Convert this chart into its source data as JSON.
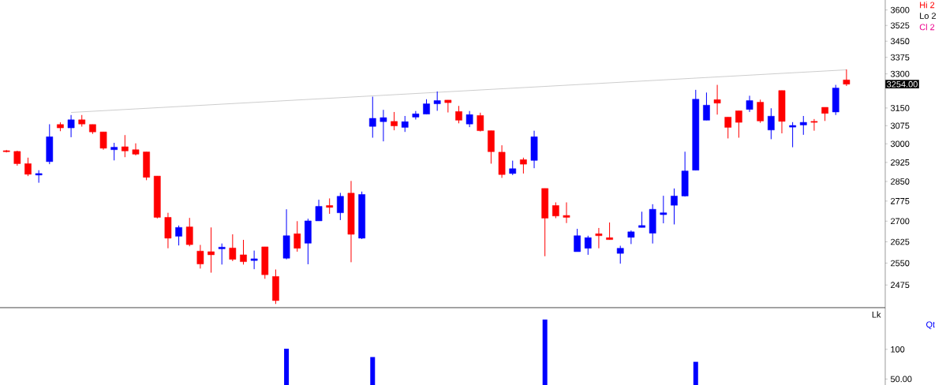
{
  "chart_data": [
    {
      "type": "candlestick",
      "categories": [
        null,
        null,
        null,
        null,
        null,
        null,
        null,
        null,
        null,
        null,
        null,
        null,
        null,
        null,
        null,
        null,
        null,
        null,
        null,
        null,
        null,
        null,
        null,
        null,
        null,
        null,
        null,
        null,
        null,
        null,
        null,
        null,
        null,
        null,
        null,
        null,
        null,
        null,
        null,
        null,
        null,
        null,
        null,
        null,
        null,
        null,
        null,
        null,
        null,
        null,
        null,
        null,
        null,
        null,
        null,
        null,
        null,
        null,
        null,
        null,
        null,
        null,
        null,
        null,
        null,
        null,
        null,
        null,
        null,
        null,
        null,
        null,
        null,
        null,
        null,
        null,
        null,
        null,
        null
      ],
      "ohlc": [
        [
          2972,
          2975,
          2965,
          2968
        ],
        [
          2969,
          2972,
          2912,
          2920
        ],
        [
          2920,
          2944,
          2871,
          2878
        ],
        [
          2875,
          2894,
          2845,
          2881
        ],
        [
          2928,
          3081,
          2918,
          3029
        ],
        [
          3080,
          3089,
          3052,
          3066
        ],
        [
          3066,
          3120,
          3027,
          3100
        ],
        [
          3100,
          3120,
          3071,
          3082
        ],
        [
          3080,
          3080,
          3041,
          3049
        ],
        [
          3049,
          3049,
          2976,
          2982
        ],
        [
          2976,
          3004,
          2933,
          2986
        ],
        [
          2988,
          3036,
          2946,
          2971
        ],
        [
          2976,
          3002,
          2953,
          2958
        ],
        [
          2967,
          2967,
          2855,
          2866
        ],
        [
          2871,
          2871,
          2710,
          2714
        ],
        [
          2714,
          2731,
          2602,
          2638
        ],
        [
          2645,
          2684,
          2612,
          2677
        ],
        [
          2679,
          2712,
          2609,
          2615
        ],
        [
          2592,
          2614,
          2531,
          2547
        ],
        [
          2590,
          2677,
          2517,
          2579
        ],
        [
          2600,
          2619,
          2545,
          2606
        ],
        [
          2603,
          2652,
          2557,
          2563
        ],
        [
          2579,
          2632,
          2545,
          2555
        ],
        [
          2559,
          2594,
          2529,
          2565
        ],
        [
          2607,
          2607,
          2496,
          2510
        ],
        [
          2504,
          2528,
          2412,
          2423
        ],
        [
          2567,
          2744,
          2563,
          2647
        ],
        [
          2654,
          2700,
          2590,
          2602
        ],
        [
          2620,
          2709,
          2546,
          2701
        ],
        [
          2701,
          2780,
          2701,
          2755
        ],
        [
          2758,
          2785,
          2727,
          2751
        ],
        [
          2731,
          2806,
          2704,
          2793
        ],
        [
          2805,
          2852,
          2553,
          2652
        ],
        [
          2638,
          2811,
          2635,
          2800
        ],
        [
          3072,
          3199,
          3025,
          3106
        ],
        [
          3092,
          3142,
          3010,
          3109
        ],
        [
          3093,
          3133,
          3056,
          3074
        ],
        [
          3068,
          3116,
          3049,
          3092
        ],
        [
          3111,
          3137,
          3101,
          3125
        ],
        [
          3124,
          3188,
          3124,
          3168
        ],
        [
          3168,
          3222,
          3138,
          3182
        ],
        [
          3184,
          3184,
          3131,
          3173
        ],
        [
          3135,
          3159,
          3085,
          3098
        ],
        [
          3082,
          3137,
          3069,
          3122
        ],
        [
          3118,
          3130,
          3051,
          3054
        ],
        [
          3054,
          3054,
          2920,
          2968
        ],
        [
          2966,
          2994,
          2864,
          2877
        ],
        [
          2881,
          2932,
          2875,
          2900
        ],
        [
          2936,
          2944,
          2881,
          2918
        ],
        [
          2933,
          3054,
          2902,
          3029
        ],
        [
          2823,
          2823,
          2574,
          2711
        ],
        [
          2758,
          2770,
          2711,
          2719
        ],
        [
          2721,
          2770,
          2693,
          2714
        ],
        [
          2590,
          2672,
          2590,
          2647
        ],
        [
          2602,
          2647,
          2579,
          2640
        ],
        [
          2654,
          2675,
          2602,
          2647
        ],
        [
          2640,
          2695,
          2633,
          2633
        ],
        [
          2584,
          2611,
          2548,
          2602
        ],
        [
          2641,
          2666,
          2617,
          2661
        ],
        [
          2677,
          2735,
          2677,
          2684
        ],
        [
          2656,
          2763,
          2619,
          2744
        ],
        [
          2724,
          2795,
          2692,
          2731
        ],
        [
          2759,
          2823,
          2688,
          2794
        ],
        [
          2794,
          2968,
          2792,
          2891
        ],
        [
          2894,
          3229,
          2894,
          3188
        ],
        [
          3098,
          3217,
          3098,
          3162
        ],
        [
          3186,
          3251,
          3122,
          3171
        ],
        [
          3111,
          3111,
          3022,
          3068
        ],
        [
          3138,
          3138,
          3025,
          3089
        ],
        [
          3144,
          3203,
          3133,
          3182
        ],
        [
          3175,
          3186,
          3087,
          3095
        ],
        [
          3057,
          3149,
          3019,
          3115
        ],
        [
          3226,
          3226,
          3043,
          3093
        ],
        [
          3069,
          3090,
          2986,
          3076
        ],
        [
          3078,
          3116,
          3037,
          3089
        ],
        [
          3093,
          3103,
          3054,
          3089
        ],
        [
          3153,
          3153,
          3095,
          3127
        ],
        [
          3133,
          3251,
          3120,
          3237
        ],
        [
          3273,
          3320,
          3246,
          3254
        ]
      ],
      "series": [
        {
          "type": "line",
          "color": "#c0c0c0",
          "values": [
            null,
            null,
            null,
            null,
            null,
            null,
            3131,
            null,
            null,
            null,
            null,
            null,
            null,
            null,
            null,
            null,
            null,
            null,
            null,
            null,
            null,
            null,
            null,
            null,
            null,
            null,
            null,
            null,
            null,
            null,
            null,
            null,
            null,
            null,
            null,
            null,
            null,
            null,
            null,
            null,
            null,
            null,
            null,
            null,
            null,
            null,
            null,
            null,
            null,
            null,
            null,
            null,
            null,
            null,
            null,
            null,
            null,
            null,
            null,
            null,
            null,
            null,
            null,
            null,
            null,
            null,
            null,
            null,
            null,
            null,
            null,
            null,
            null,
            null,
            null,
            null,
            null,
            null,
            3318
          ]
        }
      ],
      "log": "y",
      "ylim": [
        2400,
        3650
      ],
      "yticks": [
        2475,
        2550,
        2625,
        2700,
        2775,
        2850,
        2925,
        3000,
        3075,
        3150,
        3300,
        3375,
        3450,
        3525,
        3600
      ],
      "tick_labels": "y",
      "annotations": [
        "Hi 2",
        "Lo 2",
        "Cl 2",
        "3254.00"
      ]
    },
    {
      "type": "bar",
      "categories": [
        null,
        null,
        null,
        null,
        null,
        null,
        null,
        null,
        null,
        null,
        null,
        null,
        null,
        null,
        null,
        null,
        null,
        null,
        null,
        null,
        null,
        null,
        null,
        null,
        null,
        null,
        null,
        null,
        null,
        null,
        null,
        null,
        null,
        null,
        null,
        null,
        null,
        null,
        null,
        null,
        null,
        null,
        null,
        null,
        null,
        null,
        null,
        null,
        null,
        null,
        null,
        null,
        null,
        null,
        null,
        null,
        null,
        null,
        null,
        null,
        null,
        null,
        null,
        null,
        null,
        null,
        null,
        null,
        null,
        null,
        null,
        null,
        null,
        null,
        null,
        null,
        null,
        null,
        null
      ],
      "values": [
        null,
        null,
        null,
        null,
        null,
        null,
        null,
        null,
        null,
        null,
        null,
        null,
        null,
        null,
        null,
        null,
        null,
        null,
        null,
        null,
        null,
        null,
        null,
        null,
        null,
        null,
        101,
        null,
        null,
        null,
        null,
        null,
        null,
        null,
        87,
        null,
        null,
        null,
        null,
        null,
        null,
        null,
        null,
        null,
        null,
        null,
        null,
        null,
        null,
        null,
        150,
        null,
        null,
        null,
        null,
        null,
        null,
        null,
        null,
        null,
        null,
        null,
        null,
        null,
        79,
        null,
        null,
        null,
        null,
        null,
        null,
        null,
        null,
        null,
        null,
        null,
        null,
        null,
        null
      ],
      "color": "#0000ff",
      "ylim": [
        40,
        170
      ],
      "yticks": [
        100,
        {
          "value": 50,
          "label": "50.00"
        }
      ],
      "ylabel": "Qt",
      "tick_labels": "y",
      "annotations": [
        "Lk"
      ]
    }
  ]
}
